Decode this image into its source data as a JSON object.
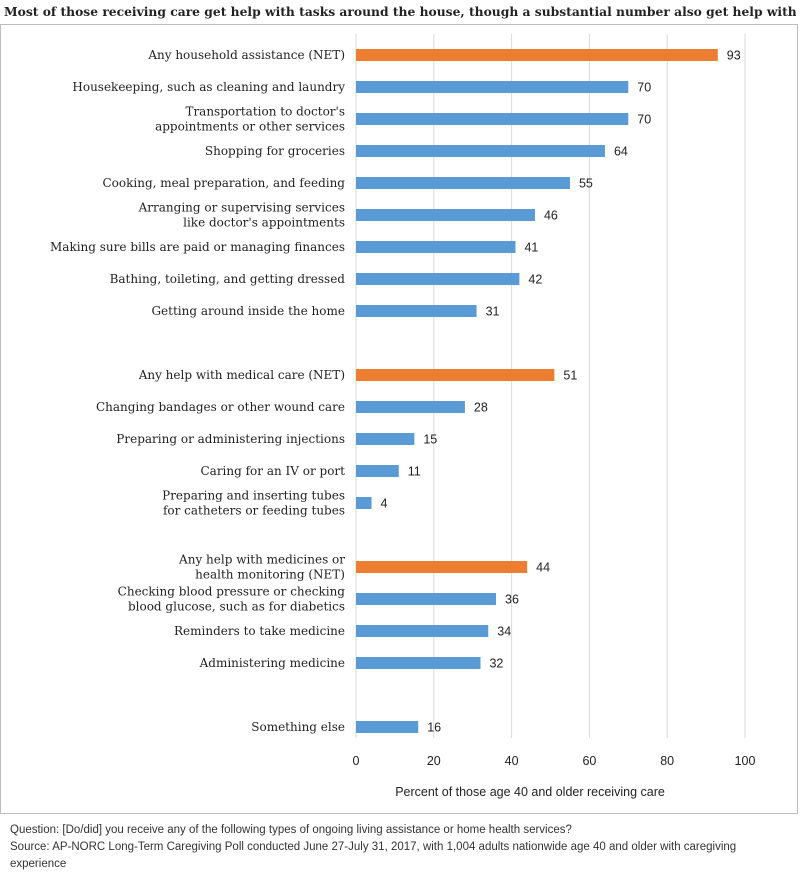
{
  "title": "Most of those receiving care get help with tasks around the house, though a substantial number also get help with medical care.",
  "footnote": {
    "question": "Question: [Do/did] you receive any of the following types of ongoing living assistance or home health services?",
    "source": "Source: AP-NORC Long-Term Caregiving Poll conducted June 27-July 31, 2017, with 1,004 adults nationwide age 40 and older with caregiving experience"
  },
  "colors": {
    "net": "#ed7d31",
    "item": "#5b9bd5",
    "grid": "#d9d9d9"
  },
  "chart_data": {
    "type": "bar",
    "orientation": "horizontal",
    "xlabel": "Percent of those age 40 and older receiving care",
    "ylabel": "",
    "xlim": [
      0,
      100
    ],
    "xticks": [
      "0",
      "20",
      "40",
      "60",
      "80",
      "100"
    ],
    "grid": true,
    "data_labels": true,
    "categories": [
      {
        "label": [
          "Any household assistance (NET)"
        ],
        "value": 93,
        "kind": "net",
        "slot": 0
      },
      {
        "label": [
          "Housekeeping, such as cleaning and laundry"
        ],
        "value": 70,
        "kind": "item",
        "slot": 1
      },
      {
        "label": [
          "Transportation to doctor's",
          "appointments or other services"
        ],
        "value": 70,
        "kind": "item",
        "slot": 2
      },
      {
        "label": [
          "Shopping for groceries"
        ],
        "value": 64,
        "kind": "item",
        "slot": 3
      },
      {
        "label": [
          "Cooking, meal preparation, and feeding"
        ],
        "value": 55,
        "kind": "item",
        "slot": 4
      },
      {
        "label": [
          "Arranging or supervising services",
          "like doctor's appointments"
        ],
        "value": 46,
        "kind": "item",
        "slot": 5
      },
      {
        "label": [
          "Making sure bills are paid or managing finances"
        ],
        "value": 41,
        "kind": "item",
        "slot": 6
      },
      {
        "label": [
          "Bathing, toileting, and getting dressed"
        ],
        "value": 42,
        "kind": "item",
        "slot": 7
      },
      {
        "label": [
          "Getting around inside the home"
        ],
        "value": 31,
        "kind": "item",
        "slot": 8
      },
      {
        "label": [
          "Any help with medical care (NET)"
        ],
        "value": 51,
        "kind": "net",
        "slot": 10
      },
      {
        "label": [
          "Changing bandages or other wound care"
        ],
        "value": 28,
        "kind": "item",
        "slot": 11
      },
      {
        "label": [
          "Preparing or administering injections"
        ],
        "value": 15,
        "kind": "item",
        "slot": 12
      },
      {
        "label": [
          "Caring for an IV or port"
        ],
        "value": 11,
        "kind": "item",
        "slot": 13
      },
      {
        "label": [
          "Preparing and inserting tubes",
          "for catheters or feeding tubes"
        ],
        "value": 4,
        "kind": "item",
        "slot": 14
      },
      {
        "label": [
          "Any help with medicines or",
          "health monitoring (NET)"
        ],
        "value": 44,
        "kind": "net",
        "slot": 16
      },
      {
        "label": [
          "Checking blood pressure or checking",
          "blood glucose, such as for diabetics"
        ],
        "value": 36,
        "kind": "item",
        "slot": 17
      },
      {
        "label": [
          "Reminders to take medicine"
        ],
        "value": 34,
        "kind": "item",
        "slot": 18
      },
      {
        "label": [
          "Administering medicine"
        ],
        "value": 32,
        "kind": "item",
        "slot": 19
      },
      {
        "label": [
          "Something else"
        ],
        "value": 16,
        "kind": "item",
        "slot": 21
      }
    ]
  }
}
